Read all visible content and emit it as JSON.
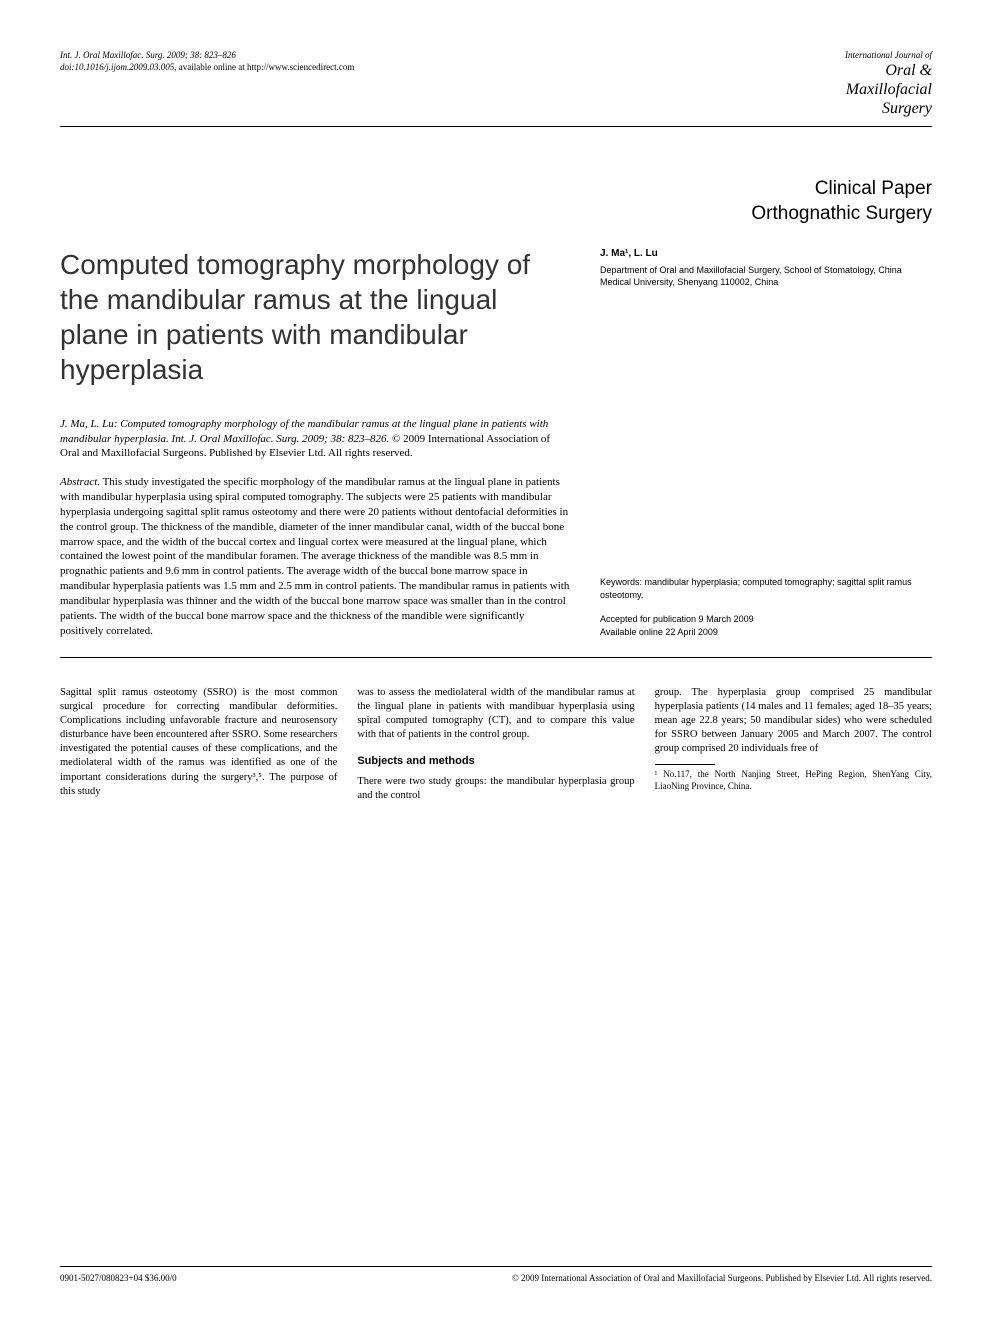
{
  "header": {
    "citation_line1": "Int. J. Oral Maxillofac. Surg. 2009; 38: 823–826",
    "citation_line2_prefix": "doi:10.1016/j.ijom.2009.03.005, ",
    "citation_line2_rest": "available online at http://www.sciencedirect.com",
    "journal_logo": {
      "line1": "International Journal of",
      "line2": "Oral &",
      "line3": "Maxillofacial",
      "line4": "Surgery"
    }
  },
  "section": {
    "type": "Clinical Paper",
    "field": "Orthognathic Surgery"
  },
  "title": "Computed tomography morphology of the mandibular ramus at the lingual plane in patients with mandibular hyperplasia",
  "authors": {
    "names": "J. Ma¹, L. Lu",
    "affiliation": "Department of Oral and Maxillofacial Surgery, School of Stomatology, China Medical University, Shenyang 110002, China"
  },
  "citation_block": {
    "ital": "J. Ma, L. Lu: Computed tomography morphology of the mandibular ramus at the lingual plane in patients with mandibular hyperplasia. Int. J. Oral Maxillofac. Surg. 2009; 38: 823–826.",
    "rest": " © 2009 International Association of Oral and Maxillofacial Surgeons. Published by Elsevier Ltd. All rights reserved."
  },
  "abstract": {
    "label": "Abstract.",
    "text": " This study investigated the specific morphology of the mandibular ramus at the lingual plane in patients with mandibular hyperplasia using spiral computed tomography. The subjects were 25 patients with mandibular hyperplasia undergoing sagittal split ramus osteotomy and there were 20 patients without dentofacial deformities in the control group. The thickness of the mandible, diameter of the inner mandibular canal, width of the buccal bone marrow space, and the width of the buccal cortex and lingual cortex were measured at the lingual plane, which contained the lowest point of the mandibular foramen. The average thickness of the mandible was 8.5 mm in prognathic patients and 9.6 mm in control patients. The average width of the buccal bone marrow space in mandibular hyperplasia patients was 1.5 mm and 2.5 mm in control patients. The mandibular ramus in patients with mandibular hyperplasia was thinner and the width of the buccal bone marrow space was smaller than in the control patients. The width of the buccal bone marrow space and the thickness of the mandible were significantly positively correlated."
  },
  "sidebar": {
    "keywords": "Keywords: mandibular hyperplasia; computed tomography; sagittal split ramus osteotomy.",
    "accepted": "Accepted for publication 9 March 2009",
    "online": "Available online 22 April 2009"
  },
  "body": {
    "col1": "Sagittal split ramus osteotomy (SSRO) is the most common surgical procedure for correcting mandibular deformities. Complications including unfavorable fracture and neurosensory disturbance have been encountered after SSRO. Some researchers investigated the potential causes of these complications, and the mediolateral width of the ramus was identified as one of the important considerations during the surgery³,⁵. The purpose of this study",
    "col2a": "was to assess the mediolateral width of the mandibular ramus at the lingual plane in patients with mandibuar hyperplasia using spiral computed tomography (CT), and to compare this value with that of patients in the control group.",
    "col2_heading": "Subjects and methods",
    "col2b": "There were two study groups: the mandibular hyperplasia group and the control",
    "col3": "group. The hyperplasia group comprised 25 mandibular hyperplasia patients (14 males and 11 females; aged 18–35 years; mean age 22.8 years; 50 mandibular sides) who were scheduled for SSRO between January 2005 and March 2007. The control group comprised 20 individuals free of",
    "footnote": "¹ No.117, the North Nanjing Street, HePing Region, ShenYang City, LiaoNing Province, China."
  },
  "footer": {
    "left": "0901-5027/080823+04 $36.00/0",
    "right": "© 2009 International Association of Oral and Maxillofacial Surgeons. Published by Elsevier Ltd. All rights reserved."
  },
  "style": {
    "page_bg": "#ffffff",
    "text_color": "#000000",
    "title_color": "#333333",
    "rule_color": "#000000",
    "title_fontsize": 28,
    "body_fontsize": 10.5,
    "small_fontsize": 9,
    "section_fontsize": 19
  }
}
